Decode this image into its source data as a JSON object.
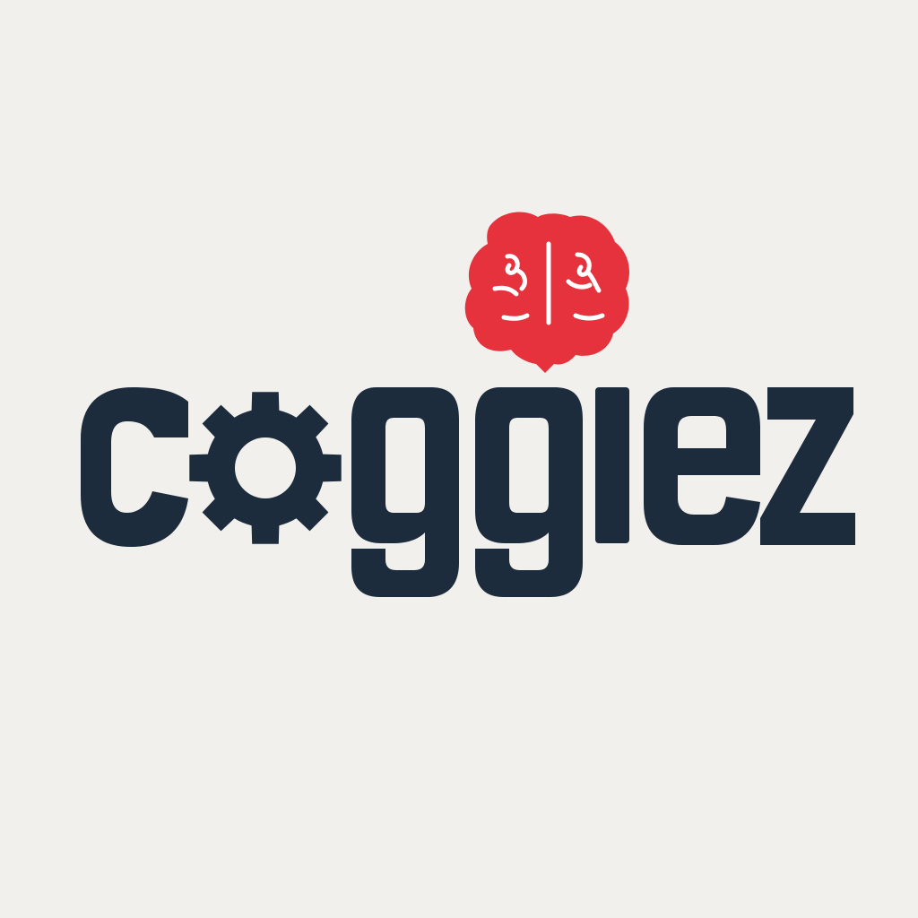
{
  "logo": {
    "wordmark": "coggiez",
    "colors": {
      "background": "#f1f0ec",
      "wordmark": "#1d2c3c",
      "brain": "#e5323c",
      "brain_lines": "#ffffff"
    },
    "icons": [
      "gear-icon",
      "brain-icon"
    ]
  }
}
